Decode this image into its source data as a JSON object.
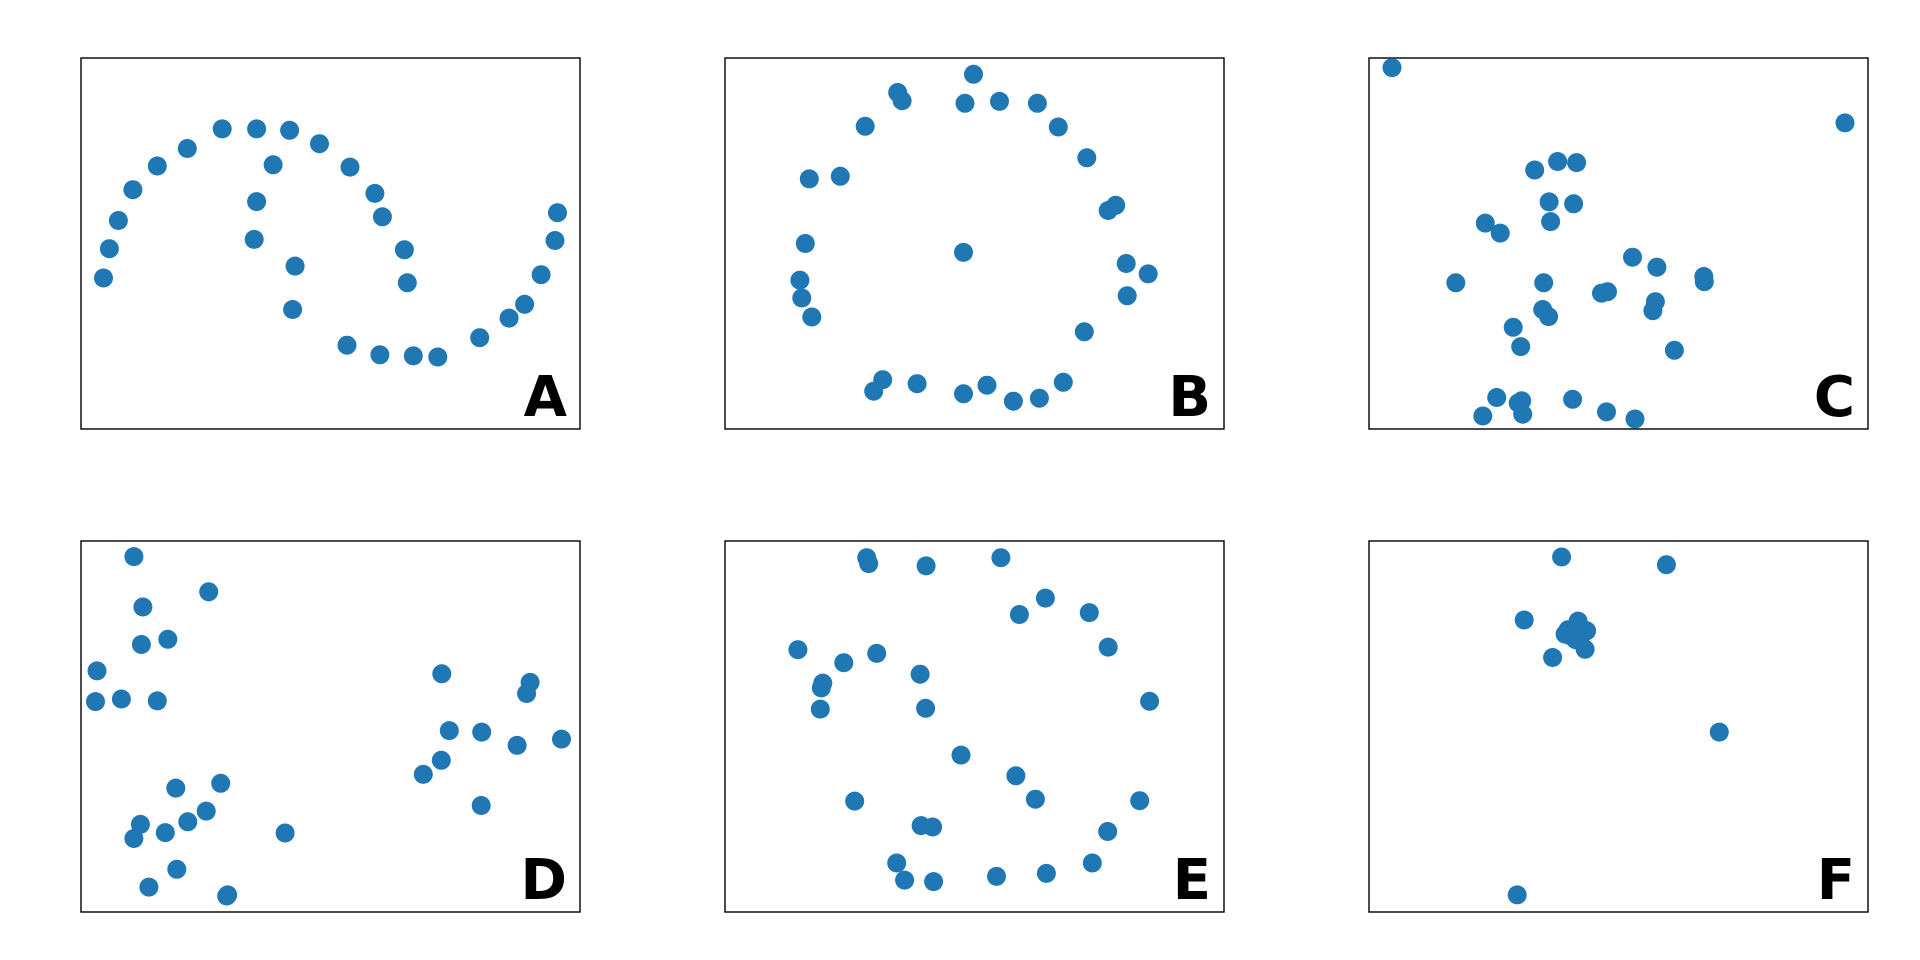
{
  "figure": {
    "accent_color": "#1f77b4",
    "background": "#ffffff"
  },
  "chart_data": [
    {
      "type": "scatter",
      "label": "A",
      "grid": false,
      "xlim": [
        0,
        100
      ],
      "ylim": [
        0,
        100
      ],
      "x": [
        4.5,
        5.7,
        7.5,
        10.4,
        15.3,
        21.3,
        28.3,
        35.2,
        41.8,
        47.8,
        53.9,
        58.9,
        60.4,
        64.8,
        65.4,
        42.9,
        34.7,
        35.2,
        38.5,
        42.4,
        53.3,
        59.9,
        66.6,
        71.5,
        79.9,
        85.8,
        88.9,
        92.2,
        95.0,
        95.5
      ],
      "y": [
        40.7,
        48.6,
        56.2,
        64.5,
        70.9,
        75.6,
        80.9,
        80.9,
        80.5,
        76.9,
        70.6,
        63.5,
        57.2,
        48.3,
        39.4,
        43.9,
        51.1,
        61.3,
        71.2,
        32.2,
        22.6,
        20.0,
        19.7,
        19.4,
        24.6,
        29.9,
        33.6,
        41.6,
        50.8,
        58.3
      ]
    },
    {
      "type": "scatter",
      "label": "B",
      "grid": false,
      "xlim": [
        0,
        100
      ],
      "ylim": [
        0,
        100
      ],
      "x": [
        49.8,
        48.1,
        34.6,
        35.5,
        55.0,
        62.6,
        66.8,
        72.5,
        76.8,
        78.3,
        80.4,
        80.6,
        84.8,
        72.0,
        67.8,
        63.0,
        57.8,
        52.5,
        47.8,
        38.5,
        31.6,
        29.8,
        17.4,
        15.4,
        15.0,
        16.1,
        16.9,
        23.1,
        28.1,
        47.8
      ],
      "y": [
        95.6,
        87.8,
        90.7,
        88.5,
        88.3,
        87.8,
        81.4,
        73.1,
        58.9,
        60.3,
        44.6,
        35.9,
        41.8,
        26.2,
        12.6,
        8.3,
        7.5,
        11.8,
        9.5,
        12.2,
        13.3,
        10.2,
        30.2,
        35.3,
        40.1,
        50.0,
        67.4,
        68.1,
        81.6,
        47.6
      ]
    },
    {
      "type": "scatter",
      "label": "C",
      "grid": false,
      "xlim": [
        0,
        100
      ],
      "ylim": [
        0,
        100
      ],
      "x": [
        4.6,
        95.4,
        33.2,
        37.8,
        41.6,
        36.1,
        41.0,
        36.4,
        23.3,
        26.3,
        17.4,
        35.0,
        34.8,
        36.0,
        28.9,
        30.4,
        52.8,
        57.7,
        46.6,
        47.8,
        67.1,
        67.2,
        57.4,
        56.9,
        61.2,
        30.6,
        25.6,
        29.9,
        22.8,
        30.8,
        40.8,
        47.6,
        53.3
      ],
      "y": [
        97.4,
        82.5,
        69.8,
        72.1,
        71.8,
        61.2,
        60.7,
        55.9,
        55.5,
        52.8,
        39.4,
        39.4,
        32.2,
        30.3,
        27.4,
        22.2,
        46.3,
        43.6,
        36.6,
        37.0,
        41.1,
        39.7,
        34.3,
        31.9,
        21.2,
        7.6,
        8.5,
        7.0,
        3.5,
        4.0,
        8.0,
        4.6,
        2.7
      ]
    },
    {
      "type": "scatter",
      "label": "D",
      "grid": false,
      "xlim": [
        0,
        100
      ],
      "ylim": [
        0,
        100
      ],
      "x": [
        10.6,
        12.4,
        25.6,
        12.1,
        17.4,
        3.2,
        2.9,
        8.1,
        15.3,
        11.9,
        28.0,
        19.0,
        25.1,
        21.4,
        16.9,
        10.6,
        19.2,
        29.4,
        40.9,
        29.2,
        13.6,
        72.3,
        90.0,
        89.3,
        73.8,
        80.3,
        96.3,
        72.2,
        68.6,
        80.2,
        87.4
      ],
      "y": [
        95.8,
        82.2,
        86.3,
        72.1,
        73.5,
        65.0,
        56.7,
        57.4,
        56.9,
        23.6,
        34.7,
        33.4,
        27.2,
        24.3,
        21.4,
        19.8,
        11.5,
        4.6,
        21.3,
        4.3,
        6.7,
        64.2,
        61.9,
        58.9,
        48.9,
        48.5,
        46.6,
        40.9,
        37.1,
        28.7,
        44.9
      ]
    },
    {
      "type": "scatter",
      "label": "E",
      "grid": false,
      "xlim": [
        0,
        100
      ],
      "ylim": [
        0,
        100
      ],
      "x": [
        28.4,
        28.8,
        40.3,
        55.3,
        64.2,
        59.0,
        73.0,
        76.8,
        14.6,
        23.8,
        30.4,
        19.6,
        19.1,
        19.3,
        39.1,
        40.2,
        47.3,
        85.1,
        58.3,
        62.2,
        26.0,
        39.3,
        41.6,
        83.1,
        76.7,
        34.4,
        36.0,
        41.8,
        54.4,
        64.4,
        73.6
      ],
      "y": [
        95.5,
        93.9,
        93.3,
        95.5,
        84.6,
        80.2,
        80.7,
        71.4,
        70.7,
        67.2,
        69.7,
        61.7,
        54.7,
        60.4,
        64.1,
        54.9,
        42.3,
        56.8,
        36.7,
        30.4,
        29.9,
        23.3,
        22.9,
        30.0,
        21.7,
        13.2,
        8.6,
        8.2,
        9.6,
        10.4,
        13.2
      ],
      "highlight_index": null
    },
    {
      "type": "scatter",
      "label": "F",
      "grid": false,
      "xlim": [
        0,
        100
      ],
      "ylim": [
        0,
        100
      ],
      "x": [
        38.6,
        59.6,
        31.1,
        39.9,
        41.9,
        43.6,
        40.3,
        41.4,
        39.3,
        40.6,
        42.4,
        36.8,
        43.3,
        70.2,
        29.7
      ],
      "y": [
        95.7,
        93.6,
        78.7,
        76.1,
        78.4,
        75.8,
        74.5,
        73.4,
        74.9,
        75.4,
        74.1,
        68.6,
        70.8,
        48.5,
        4.6
      ]
    }
  ]
}
